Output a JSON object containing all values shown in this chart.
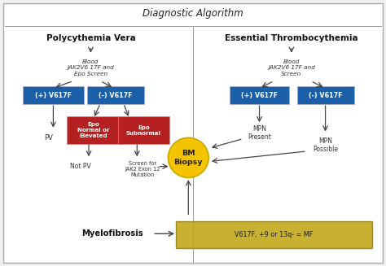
{
  "title": "Diagnostic Algorithm",
  "left_header": "Polycythemia Vera",
  "right_header": "Essential Thrombocythemia",
  "box_blue": "#1a5fa8",
  "box_red": "#b52020",
  "bm_ellipse_color": "#f5c400",
  "bm_ellipse_edge": "#c8a800",
  "arrow_color": "#444444",
  "divider_color": "#999999",
  "left_blood_text": "Blood\nJAK2V6 17F and\nEpo Screen",
  "right_blood_text": "Blood\nJAK2V6 17F and\nScreen",
  "pos_v617f": "(+) V617F",
  "neg_v617f": "(-) V617F",
  "epo_normal": "Epo\nNormal or\nElevated",
  "epo_subnormal": "Epo\nSubnormal",
  "pv_label": "PV",
  "not_pv_label": "Not PV",
  "screen_jak2": "Screen for\nJAK2 Exon 12\nMutation",
  "bm_biopsy": "BM\nBiopsy",
  "mpn_present": "MPN\nPresent",
  "mpn_possible": "MPN\nPossible",
  "myelofibrosis": "Myelofibrosis",
  "mf_box_text": "V617F, +9 or 13q- = MF",
  "mf_box_face": "#c8b030",
  "mf_box_edge": "#9a8820",
  "outer_border": "#aaaaaa",
  "bg_color": "#f0f0f0"
}
